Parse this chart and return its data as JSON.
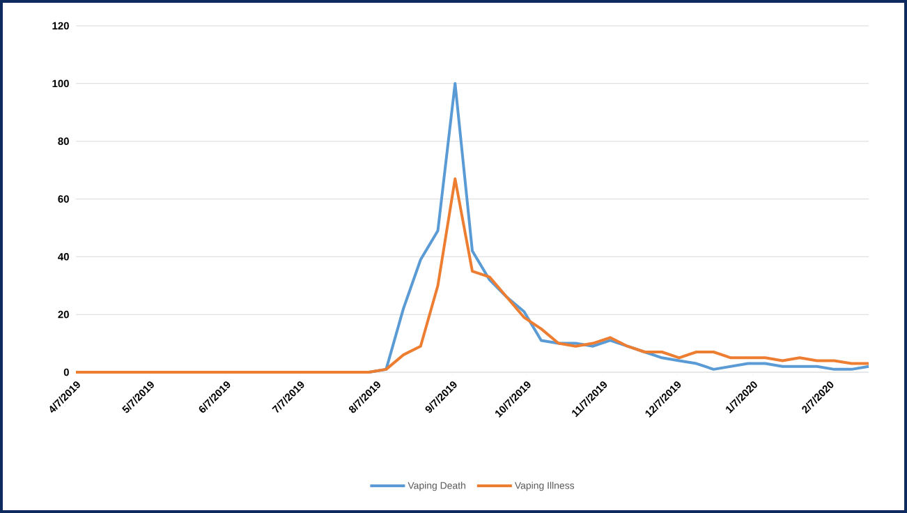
{
  "chart_data": {
    "type": "line",
    "x": [
      "2019-04-07",
      "2019-04-14",
      "2019-04-21",
      "2019-04-28",
      "2019-05-05",
      "2019-05-12",
      "2019-05-19",
      "2019-05-26",
      "2019-06-02",
      "2019-06-09",
      "2019-06-16",
      "2019-06-23",
      "2019-06-30",
      "2019-07-07",
      "2019-07-14",
      "2019-07-21",
      "2019-07-28",
      "2019-08-04",
      "2019-08-11",
      "2019-08-18",
      "2019-08-25",
      "2019-09-01",
      "2019-09-08",
      "2019-09-15",
      "2019-09-22",
      "2019-09-29",
      "2019-10-06",
      "2019-10-13",
      "2019-10-20",
      "2019-10-27",
      "2019-11-03",
      "2019-11-10",
      "2019-11-17",
      "2019-11-24",
      "2019-12-01",
      "2019-12-08",
      "2019-12-15",
      "2019-12-22",
      "2019-12-29",
      "2020-01-05",
      "2020-01-12",
      "2020-01-19",
      "2020-01-26",
      "2020-02-02",
      "2020-02-09",
      "2020-02-16",
      "2020-02-23"
    ],
    "series": [
      {
        "name": "Vaping Death",
        "color": "#5b9bd5",
        "values": [
          null,
          null,
          null,
          null,
          null,
          null,
          null,
          null,
          null,
          null,
          null,
          null,
          null,
          null,
          null,
          null,
          null,
          0,
          1,
          22,
          39,
          49,
          100,
          42,
          32,
          26,
          21,
          11,
          10,
          10,
          9,
          11,
          9,
          7,
          5,
          4,
          3,
          1,
          2,
          3,
          3,
          2,
          2,
          2,
          1,
          1,
          2
        ]
      },
      {
        "name": "Vaping Illness",
        "color": "#ed7d31",
        "values": [
          0,
          0,
          0,
          0,
          0,
          0,
          0,
          0,
          0,
          0,
          0,
          0,
          0,
          0,
          0,
          0,
          0,
          0,
          1,
          6,
          9,
          30,
          67,
          35,
          33,
          26,
          19,
          15,
          10,
          9,
          10,
          12,
          9,
          7,
          7,
          5,
          7,
          7,
          5,
          5,
          5,
          4,
          5,
          4,
          4,
          3,
          3
        ]
      }
    ],
    "xlim": [
      "2019-04-07",
      "2020-02-23"
    ],
    "xticks": [
      {
        "value": "2019-04-07",
        "label": "4/7/2019"
      },
      {
        "value": "2019-05-07",
        "label": "5/7/2019"
      },
      {
        "value": "2019-06-07",
        "label": "6/7/2019"
      },
      {
        "value": "2019-07-07",
        "label": "7/7/2019"
      },
      {
        "value": "2019-08-07",
        "label": "8/7/2019"
      },
      {
        "value": "2019-09-07",
        "label": "9/7/2019"
      },
      {
        "value": "2019-10-07",
        "label": "10/7/2019"
      },
      {
        "value": "2019-11-07",
        "label": "11/7/2019"
      },
      {
        "value": "2019-12-07",
        "label": "12/7/2019"
      },
      {
        "value": "2020-01-07",
        "label": "1/7/2020"
      },
      {
        "value": "2020-02-07",
        "label": "2/7/2020"
      }
    ],
    "ylim": [
      0,
      120
    ],
    "yticks": [
      0,
      20,
      40,
      60,
      80,
      100,
      120
    ],
    "grid": "y",
    "legend": "bottom",
    "marker": "none",
    "line_style": "solid"
  }
}
